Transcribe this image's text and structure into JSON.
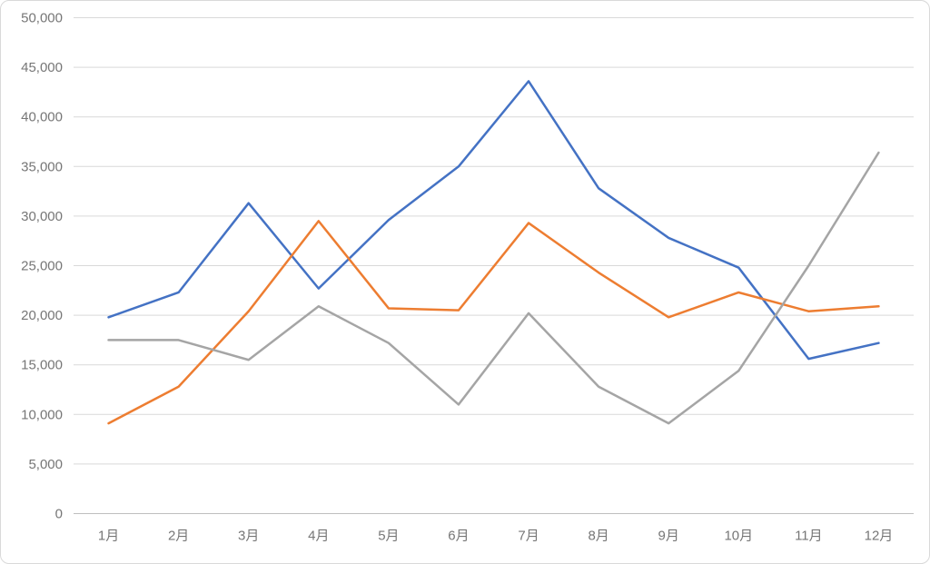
{
  "chart_data": {
    "type": "line",
    "title": "",
    "xlabel": "",
    "ylabel": "",
    "categories": [
      "1月",
      "2月",
      "3月",
      "4月",
      "5月",
      "6月",
      "7月",
      "8月",
      "9月",
      "10月",
      "11月",
      "12月"
    ],
    "series": [
      {
        "name": "blue-series",
        "color": "#4472C4",
        "values": [
          19800,
          22300,
          31300,
          22700,
          29600,
          35000,
          43600,
          32800,
          27800,
          24800,
          15600,
          17200
        ]
      },
      {
        "name": "orange-series",
        "color": "#ED7D31",
        "values": [
          9100,
          12800,
          20400,
          29500,
          20700,
          20500,
          29300,
          24300,
          19800,
          22300,
          20400,
          20900
        ]
      },
      {
        "name": "gray-series",
        "color": "#A5A5A5",
        "values": [
          17500,
          17500,
          15500,
          20900,
          17200,
          11000,
          20200,
          12800,
          9100,
          14400,
          25000,
          36400
        ]
      }
    ],
    "ylim": [
      0,
      50000
    ],
    "ytick_step": 5000,
    "ytick_labels": [
      "0",
      "5,000",
      "10,000",
      "15,000",
      "20,000",
      "25,000",
      "30,000",
      "35,000",
      "40,000",
      "45,000",
      "50,000"
    ],
    "grid": true,
    "legend": "none",
    "gridline_color": "#D9D9D9",
    "axis_line_color": "#BFBFBF",
    "tick_label_color": "#767676"
  }
}
